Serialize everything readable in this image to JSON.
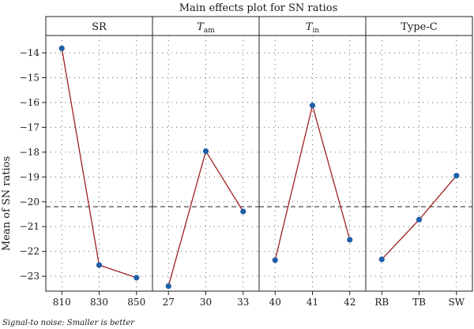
{
  "chart_data": {
    "type": "line",
    "title": "Main effects plot for SN ratios",
    "ylabel": "Mean of SN ratios",
    "ylim": [
      -23.6,
      -13.3
    ],
    "y_ticks": [
      "-14",
      "-15",
      "-16",
      "-17",
      "-18",
      "-19",
      "-20",
      "-21",
      "-22",
      "-23"
    ],
    "reference_line": -20.2,
    "grid": true,
    "panels": [
      {
        "title": "SR",
        "subscript": "",
        "categories": [
          "810",
          "830",
          "850"
        ],
        "values": [
          -13.82,
          -22.55,
          -23.06
        ]
      },
      {
        "title": "T",
        "subscript": "am",
        "categories": [
          "27",
          "30",
          "33"
        ],
        "values": [
          -23.4,
          -17.96,
          -20.39
        ]
      },
      {
        "title": "T",
        "subscript": "in",
        "categories": [
          "40",
          "41",
          "42"
        ],
        "values": [
          -22.35,
          -16.12,
          -21.53
        ]
      },
      {
        "title": "Type-C",
        "subscript": "",
        "categories": [
          "RB",
          "TB",
          "SW"
        ],
        "values": [
          -22.32,
          -20.72,
          -18.95
        ]
      }
    ],
    "footnote": "Signal-to noise: Smaller is better"
  },
  "colors": {
    "line": "#a02020",
    "point": "#1f5fa8",
    "reference": "#222222"
  }
}
